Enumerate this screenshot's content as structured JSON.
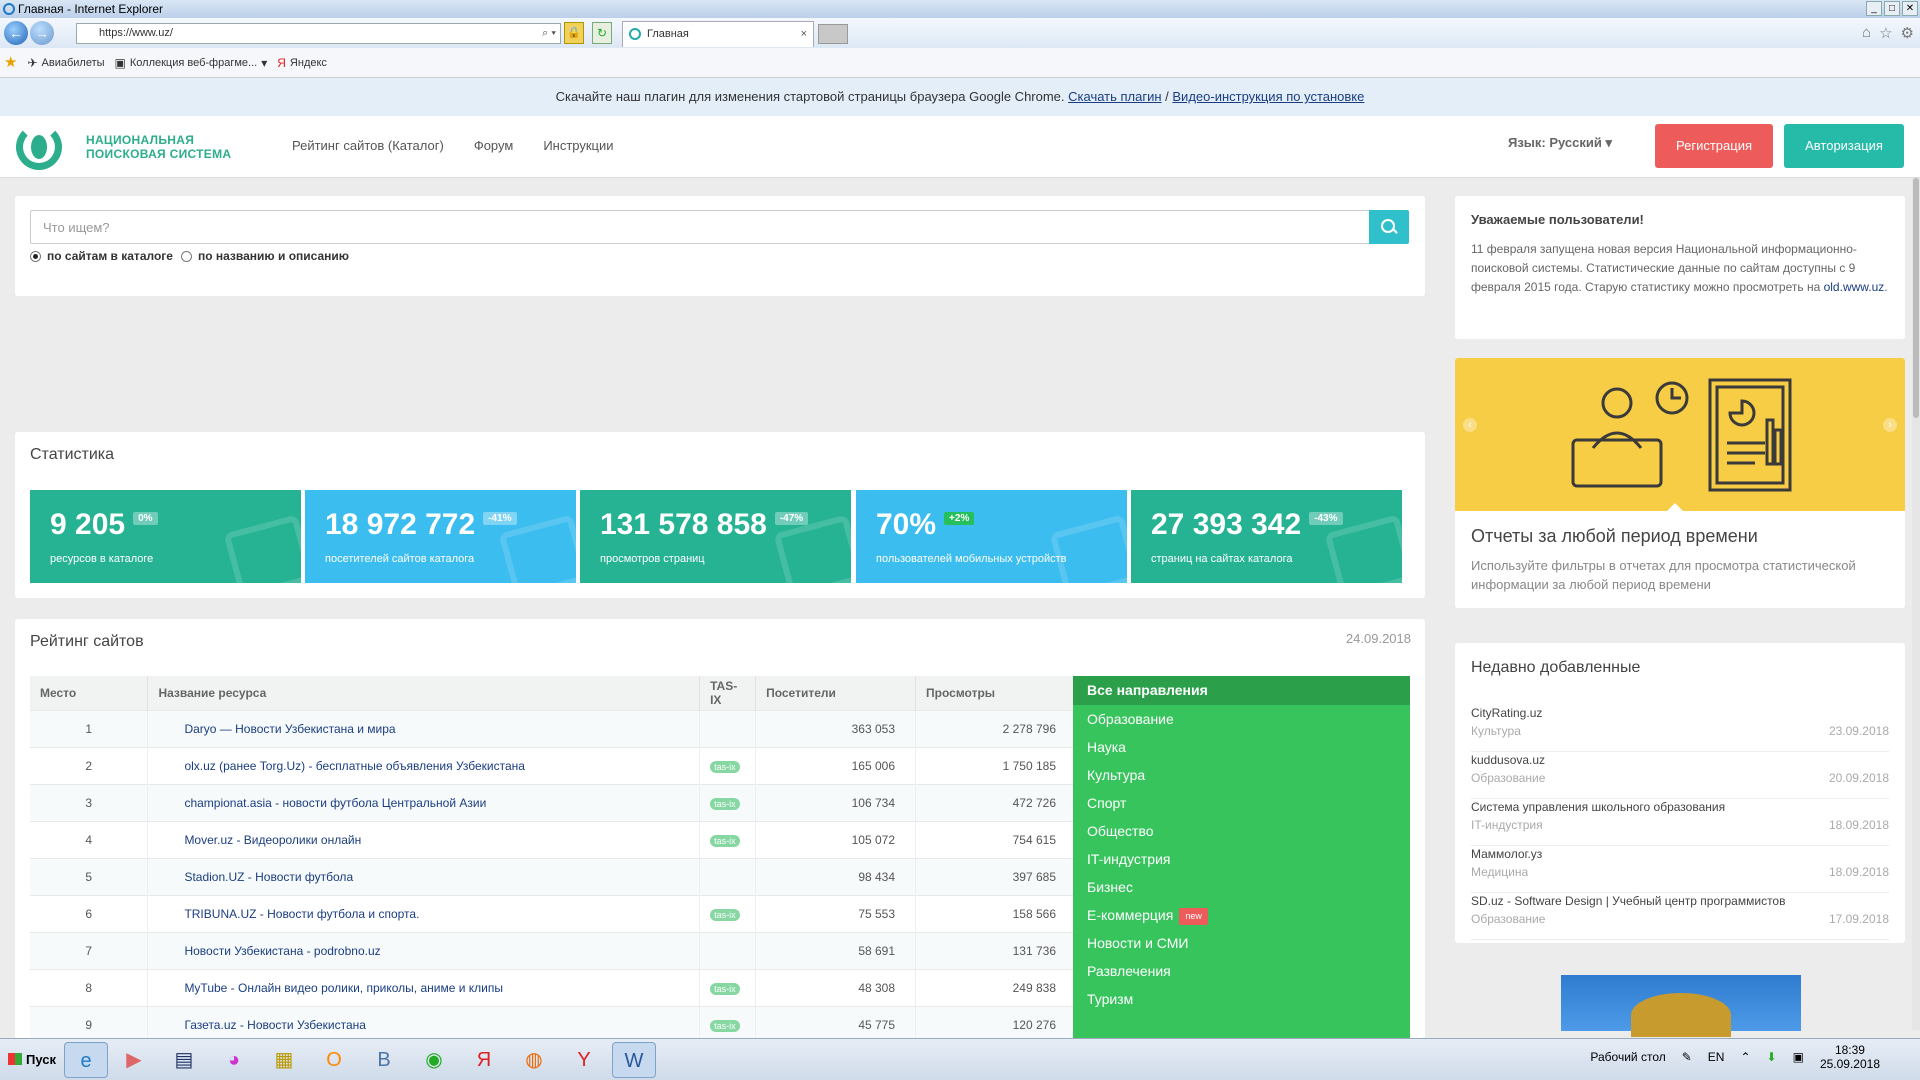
{
  "browser": {
    "window_title": "Главная - Internet Explorer",
    "address": "https://www.uz/",
    "tab_title": "Главная",
    "tab_close": "×",
    "favorites": [
      "Авиабилеты",
      "Коллекция веб-фрагме...",
      "Яндекс"
    ]
  },
  "banner": {
    "text": "Скачайте наш плагин для изменения стартовой страницы браузера Google Chrome. ",
    "link1": "Скачать плагин",
    "sep": " / ",
    "link2": "Видео-инструкция по установке"
  },
  "header": {
    "logo_line1": "Национальная",
    "logo_line2": "поисковая система",
    "menu": [
      "Рейтинг сайтов (Каталог)",
      "Форум",
      "Инструкции"
    ],
    "language": "Язык: Русский ▾",
    "register": "Регистрация",
    "login": "Авторизация"
  },
  "search": {
    "placeholder": "Что ищем?",
    "opt1": "по сайтам в каталоге",
    "opt2": "по названию и описанию"
  },
  "stats": {
    "title": "Статистика",
    "items": [
      {
        "value": "9 205",
        "badge": "0%",
        "label": "ресурсов в каталоге",
        "color": "#26b394"
      },
      {
        "value": "18 972 772",
        "badge": "-41%",
        "label": "посетителей сайтов каталога",
        "color": "#3cbdef"
      },
      {
        "value": "131 578 858",
        "badge": "-47%",
        "label": "просмотров страниц",
        "color": "#26b394"
      },
      {
        "value": "70%",
        "badge": "+2%",
        "label": "пользователей мобильных устройств",
        "color": "#3cbdef"
      },
      {
        "value": "27 393 342",
        "badge": "-43%",
        "label": "страниц на сайтах каталога",
        "color": "#26b394"
      }
    ]
  },
  "rating": {
    "title": "Рейтинг сайтов",
    "date": "24.09.2018",
    "columns": [
      "Место",
      "Название ресурса",
      "TAS-IX",
      "Посетители",
      "Просмотры"
    ],
    "tasix_label": "tas-ix",
    "rows": [
      {
        "place": "1",
        "name": "Daryo — Новости Узбекистана и мира",
        "tasix": false,
        "visitors": "363 053",
        "views": "2 278 796"
      },
      {
        "place": "2",
        "name": "olx.uz (ранее Torg.Uz) - бесплатные объявления Узбекистана",
        "tasix": true,
        "visitors": "165 006",
        "views": "1 750 185"
      },
      {
        "place": "3",
        "name": "championat.asia - новости футбола Центральной Азии",
        "tasix": true,
        "visitors": "106 734",
        "views": "472 726"
      },
      {
        "place": "4",
        "name": "Mover.uz - Видеоролики онлайн",
        "tasix": true,
        "visitors": "105 072",
        "views": "754 615"
      },
      {
        "place": "5",
        "name": "Stadion.UZ - Новости футбола",
        "tasix": false,
        "visitors": "98 434",
        "views": "397 685"
      },
      {
        "place": "6",
        "name": "TRIBUNA.UZ - Новости футбола и спорта.",
        "tasix": true,
        "visitors": "75 553",
        "views": "158 566"
      },
      {
        "place": "7",
        "name": "Новости Узбекистана - podrobno.uz",
        "tasix": false,
        "visitors": "58 691",
        "views": "131 736"
      },
      {
        "place": "8",
        "name": "MyTube - Онлайн видео ролики, приколы, аниме и клипы",
        "tasix": true,
        "visitors": "48 308",
        "views": "249 838"
      },
      {
        "place": "9",
        "name": "Газета.uz - Новости Узбекистана",
        "tasix": true,
        "visitors": "45 775",
        "views": "120 276"
      }
    ],
    "categories_head": "Все направления",
    "categories": [
      "Образование",
      "Наука",
      "Культура",
      "Спорт",
      "Общество",
      "IT-индустрия",
      "Бизнес",
      "E-коммерция",
      "Новости и СМИ",
      "Развлечения",
      "Туризм"
    ],
    "new_badge": "new"
  },
  "notice": {
    "title": "Уважаемые пользователи!",
    "text": "11 февраля запущена новая версия Национальной информационно-поисковой системы. Статистические данные по сайтам доступны с 9 февраля 2015 года. Старую статистику можно просмотреть на ",
    "link": "old.www.uz",
    "end": "."
  },
  "slider": {
    "title": "Отчеты за любой период времени",
    "text": "Используйте фильтры в отчетах для просмотра статистической информации за любой период времени"
  },
  "recent": {
    "title": "Недавно добавленные",
    "items": [
      {
        "name": "CityRating.uz",
        "category": "Культура",
        "date": "23.09.2018"
      },
      {
        "name": "kuddusova.uz",
        "category": "Образование",
        "date": "20.09.2018"
      },
      {
        "name": "Система управления школьного образования",
        "category": "IT-индустрия",
        "date": "18.09.2018"
      },
      {
        "name": "Маммолог.уз",
        "category": "Медицина",
        "date": "18.09.2018"
      },
      {
        "name": "SD.uz - Software Design | Учебный центр программистов",
        "category": "Образование",
        "date": "17.09.2018"
      }
    ]
  },
  "taskbar": {
    "start": "Пуск",
    "desktop": "Рабочий стол",
    "lang": "EN",
    "time": "18:39",
    "date": "25.09.2018"
  }
}
